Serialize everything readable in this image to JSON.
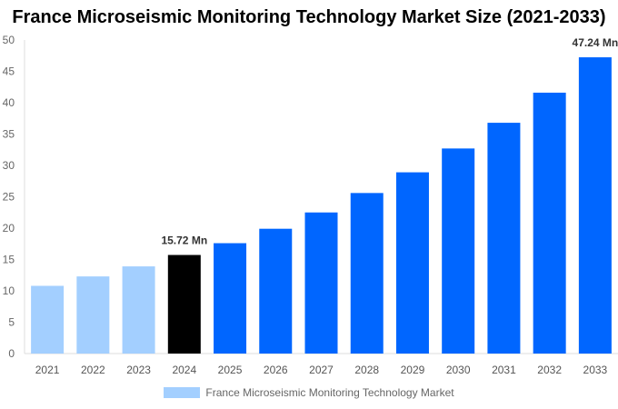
{
  "chart_data": {
    "type": "bar",
    "title": "France Microseismic Monitoring Technology Market Size (2021-2033)",
    "categories": [
      "2021",
      "2022",
      "2023",
      "2024",
      "2025",
      "2026",
      "2027",
      "2028",
      "2029",
      "2030",
      "2031",
      "2032",
      "2033"
    ],
    "series": [
      {
        "name": "France Microseismic Monitoring Technology Market",
        "values": [
          10.8,
          12.3,
          13.9,
          15.72,
          17.6,
          19.9,
          22.5,
          25.6,
          28.9,
          32.7,
          36.8,
          41.6,
          47.24
        ]
      }
    ],
    "data_labels": [
      {
        "category": "2024",
        "text": "15.72 Mn"
      },
      {
        "category": "2033",
        "text": "47.24 Mn"
      }
    ],
    "ylim": [
      0,
      50
    ],
    "yticks": [
      0,
      5,
      10,
      15,
      20,
      25,
      30,
      35,
      40,
      45,
      50
    ],
    "grid": false,
    "legend": "bottom",
    "colors": {
      "historical": "#a3cfff",
      "base_year": "#000000",
      "forecast": "#0066ff"
    }
  }
}
